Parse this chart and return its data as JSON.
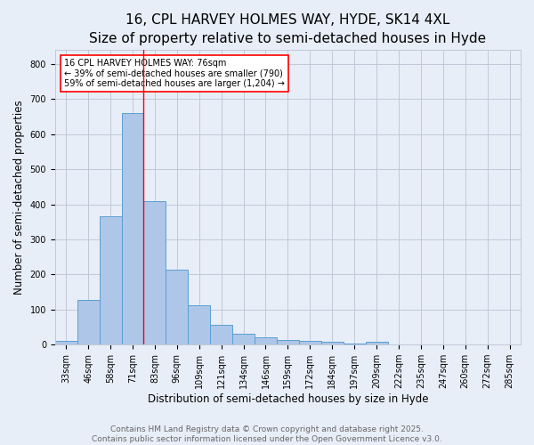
{
  "title_line1": "16, CPL HARVEY HOLMES WAY, HYDE, SK14 4XL",
  "title_line2": "Size of property relative to semi-detached houses in Hyde",
  "xlabel": "Distribution of semi-detached houses by size in Hyde",
  "ylabel": "Number of semi-detached properties",
  "categories": [
    "33sqm",
    "46sqm",
    "58sqm",
    "71sqm",
    "83sqm",
    "96sqm",
    "109sqm",
    "121sqm",
    "134sqm",
    "146sqm",
    "159sqm",
    "172sqm",
    "184sqm",
    "197sqm",
    "209sqm",
    "222sqm",
    "235sqm",
    "247sqm",
    "260sqm",
    "272sqm",
    "285sqm"
  ],
  "values": [
    10,
    127,
    367,
    660,
    410,
    215,
    111,
    57,
    31,
    22,
    13,
    11,
    8,
    3,
    7,
    0,
    0,
    0,
    0,
    0,
    0
  ],
  "bar_color": "#aec6e8",
  "bar_edge_color": "#5a9fd4",
  "grid_color": "#c0c8d8",
  "background_color": "#e8eef8",
  "annotation_line1": "16 CPL HARVEY HOLMES WAY: 76sqm",
  "annotation_line2": "← 39% of semi-detached houses are smaller (790)",
  "annotation_line3": "59% of semi-detached houses are larger (1,204) →",
  "vline_bin_index": 3.5,
  "ylim": [
    0,
    840
  ],
  "yticks": [
    0,
    100,
    200,
    300,
    400,
    500,
    600,
    700,
    800
  ],
  "footer_line1": "Contains HM Land Registry data © Crown copyright and database right 2025.",
  "footer_line2": "Contains public sector information licensed under the Open Government Licence v3.0.",
  "title_fontsize": 11,
  "subtitle_fontsize": 9,
  "axis_label_fontsize": 8.5,
  "tick_fontsize": 7,
  "annotation_fontsize": 7,
  "footer_fontsize": 6.5
}
